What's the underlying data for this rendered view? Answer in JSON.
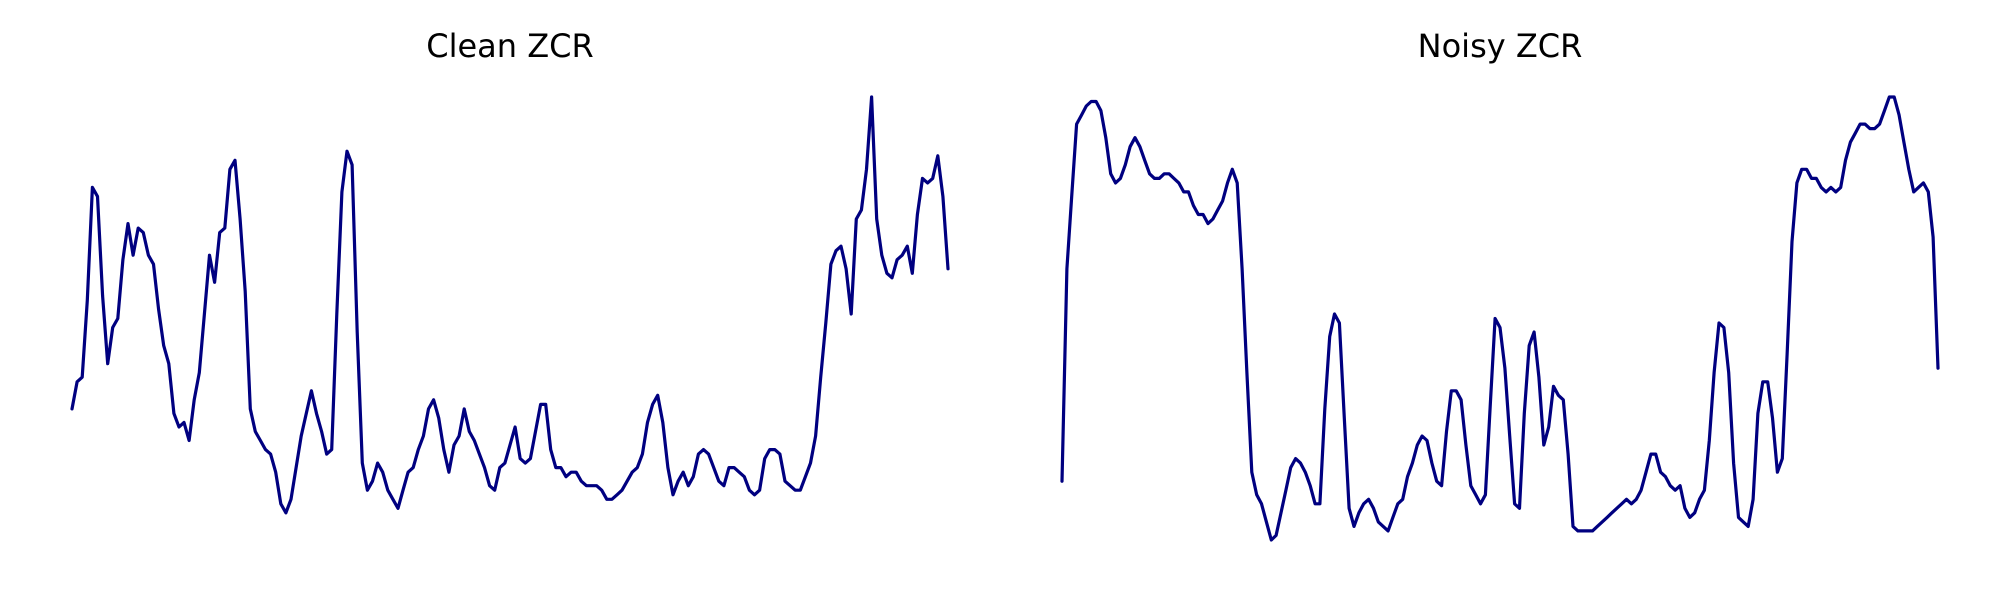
{
  "chart_data": [
    {
      "type": "line",
      "title": "Clean ZCR",
      "xlabel": "",
      "ylabel": "",
      "axes_visible": false,
      "grid": false,
      "color": "#000080",
      "ylim": [
        0.0,
        1.0
      ],
      "values": [
        0.31,
        0.37,
        0.38,
        0.55,
        0.8,
        0.78,
        0.56,
        0.41,
        0.49,
        0.51,
        0.64,
        0.72,
        0.65,
        0.71,
        0.7,
        0.65,
        0.63,
        0.53,
        0.45,
        0.41,
        0.3,
        0.27,
        0.28,
        0.24,
        0.33,
        0.39,
        0.52,
        0.65,
        0.59,
        0.7,
        0.71,
        0.84,
        0.86,
        0.73,
        0.57,
        0.31,
        0.26,
        0.24,
        0.22,
        0.21,
        0.17,
        0.1,
        0.08,
        0.11,
        0.18,
        0.25,
        0.3,
        0.35,
        0.3,
        0.26,
        0.21,
        0.22,
        0.52,
        0.79,
        0.88,
        0.85,
        0.48,
        0.19,
        0.13,
        0.15,
        0.19,
        0.17,
        0.13,
        0.11,
        0.09,
        0.13,
        0.17,
        0.18,
        0.22,
        0.25,
        0.31,
        0.33,
        0.29,
        0.22,
        0.17,
        0.23,
        0.25,
        0.31,
        0.26,
        0.24,
        0.21,
        0.18,
        0.14,
        0.13,
        0.18,
        0.19,
        0.23,
        0.27,
        0.2,
        0.19,
        0.2,
        0.26,
        0.32,
        0.32,
        0.22,
        0.18,
        0.18,
        0.16,
        0.17,
        0.17,
        0.15,
        0.14,
        0.14,
        0.14,
        0.13,
        0.11,
        0.11,
        0.12,
        0.13,
        0.15,
        0.17,
        0.18,
        0.21,
        0.28,
        0.32,
        0.34,
        0.28,
        0.18,
        0.12,
        0.15,
        0.17,
        0.14,
        0.16,
        0.21,
        0.22,
        0.21,
        0.18,
        0.15,
        0.14,
        0.18,
        0.18,
        0.17,
        0.16,
        0.13,
        0.12,
        0.13,
        0.2,
        0.22,
        0.22,
        0.21,
        0.15,
        0.14,
        0.13,
        0.13,
        0.16,
        0.19,
        0.25,
        0.38,
        0.5,
        0.63,
        0.66,
        0.67,
        0.62,
        0.52,
        0.73,
        0.75,
        0.84,
        1.0,
        0.73,
        0.65,
        0.61,
        0.6,
        0.64,
        0.65,
        0.67,
        0.61,
        0.74,
        0.82,
        0.81,
        0.82,
        0.87,
        0.78,
        0.62
      ]
    },
    {
      "type": "line",
      "title": "Noisy ZCR",
      "xlabel": "",
      "ylabel": "",
      "axes_visible": false,
      "grid": false,
      "color": "#000080",
      "ylim": [
        0.0,
        1.0
      ],
      "values": [
        0.15,
        0.62,
        0.78,
        0.94,
        0.96,
        0.98,
        0.99,
        0.99,
        0.97,
        0.91,
        0.83,
        0.81,
        0.82,
        0.85,
        0.89,
        0.91,
        0.89,
        0.86,
        0.83,
        0.82,
        0.82,
        0.83,
        0.83,
        0.82,
        0.81,
        0.79,
        0.79,
        0.76,
        0.74,
        0.74,
        0.72,
        0.73,
        0.75,
        0.77,
        0.81,
        0.84,
        0.81,
        0.62,
        0.39,
        0.17,
        0.12,
        0.1,
        0.06,
        0.02,
        0.03,
        0.08,
        0.13,
        0.18,
        0.2,
        0.19,
        0.17,
        0.14,
        0.1,
        0.1,
        0.31,
        0.47,
        0.52,
        0.5,
        0.29,
        0.09,
        0.05,
        0.08,
        0.1,
        0.11,
        0.09,
        0.06,
        0.05,
        0.04,
        0.07,
        0.1,
        0.11,
        0.16,
        0.19,
        0.23,
        0.25,
        0.24,
        0.19,
        0.15,
        0.14,
        0.26,
        0.35,
        0.35,
        0.33,
        0.23,
        0.14,
        0.12,
        0.1,
        0.12,
        0.32,
        0.51,
        0.49,
        0.4,
        0.25,
        0.1,
        0.09,
        0.3,
        0.45,
        0.48,
        0.38,
        0.23,
        0.27,
        0.36,
        0.34,
        0.33,
        0.21,
        0.05,
        0.04,
        0.04,
        0.04,
        0.04,
        0.05,
        0.06,
        0.07,
        0.08,
        0.09,
        0.1,
        0.11,
        0.1,
        0.11,
        0.13,
        0.17,
        0.21,
        0.21,
        0.17,
        0.16,
        0.14,
        0.13,
        0.14,
        0.09,
        0.07,
        0.08,
        0.11,
        0.13,
        0.24,
        0.39,
        0.5,
        0.49,
        0.39,
        0.19,
        0.07,
        0.06,
        0.05,
        0.11,
        0.3,
        0.37,
        0.37,
        0.29,
        0.17,
        0.2,
        0.43,
        0.68,
        0.81,
        0.84,
        0.84,
        0.82,
        0.82,
        0.8,
        0.79,
        0.8,
        0.79,
        0.8,
        0.86,
        0.9,
        0.92,
        0.94,
        0.94,
        0.93,
        0.93,
        0.94,
        0.97,
        1.0,
        1.0,
        0.96,
        0.9,
        0.84,
        0.79,
        0.8,
        0.81,
        0.79,
        0.69,
        0.4
      ]
    }
  ]
}
